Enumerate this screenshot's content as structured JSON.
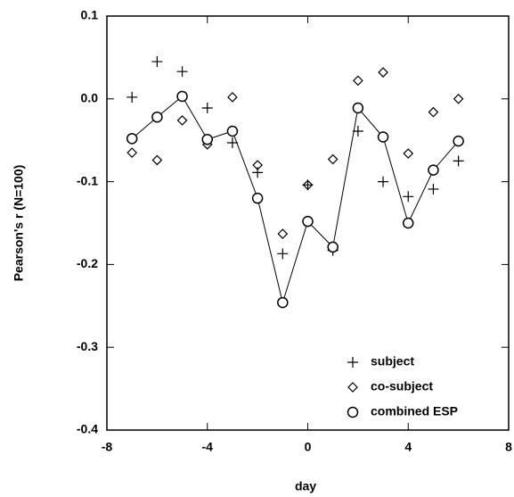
{
  "chart_data": {
    "type": "scatter",
    "x_label": "day",
    "y_label": "Pearson's r (N=100)",
    "x": [
      -7,
      -6,
      -5,
      -4,
      -3,
      -2,
      -1,
      0,
      1,
      2,
      3,
      4,
      5,
      6
    ],
    "series": [
      {
        "name": "subject",
        "color": "#000000",
        "marker": "plus",
        "line": false,
        "values": [
          0.002,
          0.045,
          0.033,
          -0.011,
          -0.053,
          -0.089,
          -0.187,
          -0.104,
          -0.183,
          -0.039,
          -0.1,
          -0.118,
          -0.109,
          -0.075
        ]
      },
      {
        "name": "co-subject",
        "color": "#000000",
        "marker": "diamond",
        "line": false,
        "values": [
          -0.065,
          -0.074,
          -0.026,
          -0.055,
          0.002,
          -0.08,
          -0.163,
          -0.104,
          -0.073,
          0.022,
          0.032,
          -0.066,
          -0.016,
          0.0
        ]
      },
      {
        "name": "combined ESP",
        "color": "#000000",
        "marker": "circle",
        "line": true,
        "values": [
          -0.048,
          -0.022,
          0.003,
          -0.049,
          -0.039,
          -0.12,
          -0.246,
          -0.148,
          -0.179,
          -0.011,
          -0.046,
          -0.15,
          -0.086,
          -0.051
        ]
      }
    ],
    "xlim": [
      -8,
      8
    ],
    "xticks": [
      -8,
      -4,
      0,
      4,
      8
    ],
    "ylim": [
      -0.4,
      0.1
    ],
    "yticks": [
      -0.4,
      -0.3,
      -0.2,
      -0.1,
      {
        "value": 0,
        "label": "0.0"
      },
      0.1
    ],
    "legend": "lower right",
    "grid": false
  }
}
